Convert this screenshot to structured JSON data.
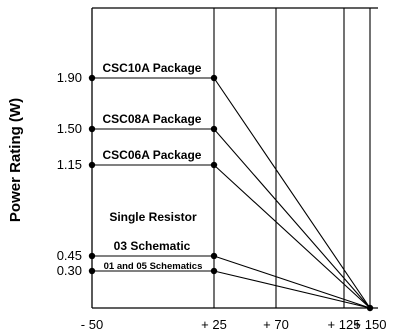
{
  "chart_data": {
    "type": "line",
    "title": "",
    "xlabel": "",
    "ylabel": "Power Rating (W)",
    "x_ticks": [
      "- 50",
      "+ 25",
      "+ 70",
      "+ 125",
      "+ 150"
    ],
    "x_tick_values": [
      -50,
      25,
      70,
      125,
      150
    ],
    "y_ticks": [
      "1.90",
      "1.50",
      "1.15",
      "0.45",
      "0.30"
    ],
    "xlim": [
      -50,
      150
    ],
    "ylim": [
      0,
      2.6
    ],
    "grid": "vertical lines at x ticks",
    "annotations": [
      "Single Resistor"
    ],
    "series": [
      {
        "name": "CSC10A Package",
        "x": [
          -50,
          25,
          150
        ],
        "y": [
          1.9,
          1.9,
          0
        ]
      },
      {
        "name": "CSC08A Package",
        "x": [
          -50,
          25,
          150
        ],
        "y": [
          1.5,
          1.5,
          0
        ]
      },
      {
        "name": "CSC06A Package",
        "x": [
          -50,
          25,
          150
        ],
        "y": [
          1.15,
          1.15,
          0
        ]
      },
      {
        "name": "03 Schematic",
        "x": [
          -50,
          25,
          150
        ],
        "y": [
          0.45,
          0.45,
          0
        ]
      },
      {
        "name": "01 and 05 Schematics",
        "x": [
          -50,
          25,
          150
        ],
        "y": [
          0.3,
          0.3,
          0
        ]
      }
    ]
  }
}
